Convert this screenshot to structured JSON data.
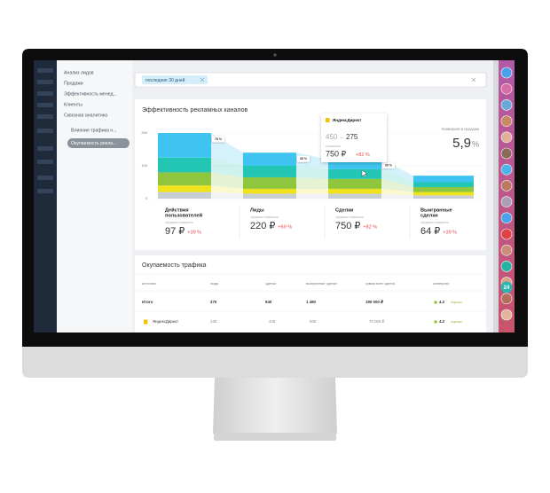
{
  "menu": {
    "items": [
      "Анализ лидов",
      "Продажи",
      "Эффективность менед...",
      "Клиенты",
      "Сквозная аналитика"
    ],
    "subitems": [
      "Влияние трафика н...",
      "Окупаемость рекла..."
    ]
  },
  "filter": {
    "chip": "последние 30 дней"
  },
  "funnel": {
    "title": "Эффективность рекламных каналов",
    "ylim": [
      0,
      200
    ],
    "yticks": [
      0,
      100,
      200
    ],
    "colors": [
      "#c9ced4",
      "#f1e21e",
      "#8fc63d",
      "#23c6b2",
      "#3fc3f1"
    ],
    "bars": [
      {
        "segments": [
          20,
          20,
          40,
          45,
          75
        ]
      },
      {
        "segments": [
          15,
          15,
          35,
          35,
          40
        ]
      },
      {
        "segments": [
          15,
          15,
          30,
          30,
          30
        ]
      },
      {
        "segments": [
          10,
          10,
          15,
          15,
          20
        ]
      }
    ],
    "flow_labels": [
      "78 %",
      "35 %",
      "39 %"
    ],
    "stats": [
      {
        "label": [
          "Действия",
          "пользователей"
        ],
        "caption": "средняя стоимость",
        "value": "97 ₽",
        "delta": "+39 %"
      },
      {
        "label": [
          "Лиды"
        ],
        "caption": "средняя стоимость",
        "value": "220 ₽",
        "delta": "+69 %"
      },
      {
        "label": [
          "Сделки"
        ],
        "caption": "средняя стоимость",
        "value": "750 ₽",
        "delta": "+82 %"
      },
      {
        "label": [
          "Выигранные",
          "сделки"
        ],
        "caption": "средняя стоимость",
        "value": "64 ₽",
        "delta": "+39 %"
      }
    ]
  },
  "tooltip": {
    "source": "ЯндексДирект",
    "from": "450",
    "arrow": "→",
    "to": "275",
    "caption": "стоимость",
    "value": "750 ₽",
    "delta": "+82 %"
  },
  "conversion": {
    "label": "Конверсия в продажи",
    "value": "5,9",
    "unit": "%"
  },
  "table": {
    "title": "Окупаемость трафика",
    "header": [
      "источник",
      "лиды",
      "сделки",
      "выигранные сделки",
      "сумма всех сделок",
      "конверсия"
    ],
    "rows": [
      [
        "Итого",
        "470",
        "940",
        "1 480",
        "190 000 ₽",
        "4.2",
        "хорошо"
      ],
      [
        "ЯндексДирект",
        "230",
        "440",
        "600",
        "70 000 ₽",
        "4.2",
        "хорошо"
      ]
    ]
  },
  "badge": "24"
}
